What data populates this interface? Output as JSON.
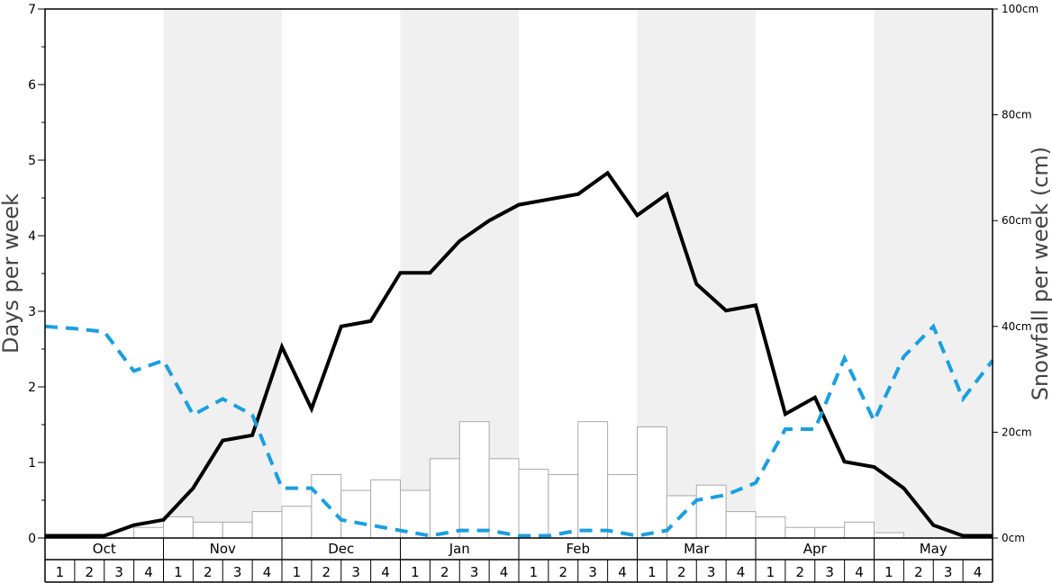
{
  "chart_data": {
    "type": "bar",
    "ylabel_left": "Days per week",
    "ylabel_right": "Snowfall per week (cm)",
    "ylim_left": [
      0,
      7
    ],
    "ylim_right": [
      0,
      100
    ],
    "y_ticks_left": [
      "0",
      "1",
      "2",
      "3",
      "4",
      "5",
      "6",
      "7"
    ],
    "y_ticks_right": [
      "0cm",
      "20cm",
      "40cm",
      "60cm",
      "80cm",
      "100cm"
    ],
    "months": [
      "Oct",
      "Nov",
      "Dec",
      "Jan",
      "Feb",
      "Mar",
      "Apr",
      "May"
    ],
    "weeks": [
      "1",
      "2",
      "3",
      "4"
    ],
    "snowfall_bars_cm": [
      0,
      0,
      0,
      2,
      4,
      3,
      3,
      5,
      6,
      12,
      9,
      11,
      9,
      15,
      22,
      15,
      13,
      12,
      22,
      12,
      21,
      8,
      10,
      5,
      4,
      2,
      2,
      3,
      1,
      0,
      0,
      0
    ],
    "series": [
      {
        "style": "solid-black",
        "axis": "left",
        "values": [
          0.03,
          0.03,
          0.03,
          0.17,
          0.24,
          0.66,
          1.29,
          1.36,
          2.53,
          1.71,
          2.8,
          2.87,
          3.51,
          3.51,
          3.93,
          4.2,
          4.41,
          4.48,
          4.55,
          4.83,
          4.27,
          4.55,
          3.36,
          3.01,
          3.08,
          1.64,
          1.86,
          1.01,
          0.94,
          0.66,
          0.17,
          0.03,
          0.03
        ]
      },
      {
        "style": "dashed-blue",
        "axis": "left",
        "values": [
          2.8,
          2.77,
          2.73,
          2.21,
          2.35,
          1.63,
          1.84,
          1.63,
          0.66,
          0.66,
          0.24,
          0.17,
          0.1,
          0.03,
          0.1,
          0.1,
          0.03,
          0.03,
          0.1,
          0.1,
          0.03,
          0.1,
          0.5,
          0.57,
          0.73,
          1.44,
          1.44,
          2.38,
          1.55,
          2.4,
          2.8,
          1.84,
          2.35
        ]
      }
    ],
    "colors": {
      "solid_line": "#000000",
      "dashed_line": "#1a9fe0",
      "bar_fill": "#ffffff",
      "bar_stroke": "#aaaaaa",
      "band_shade": "#f0f0f0"
    }
  }
}
